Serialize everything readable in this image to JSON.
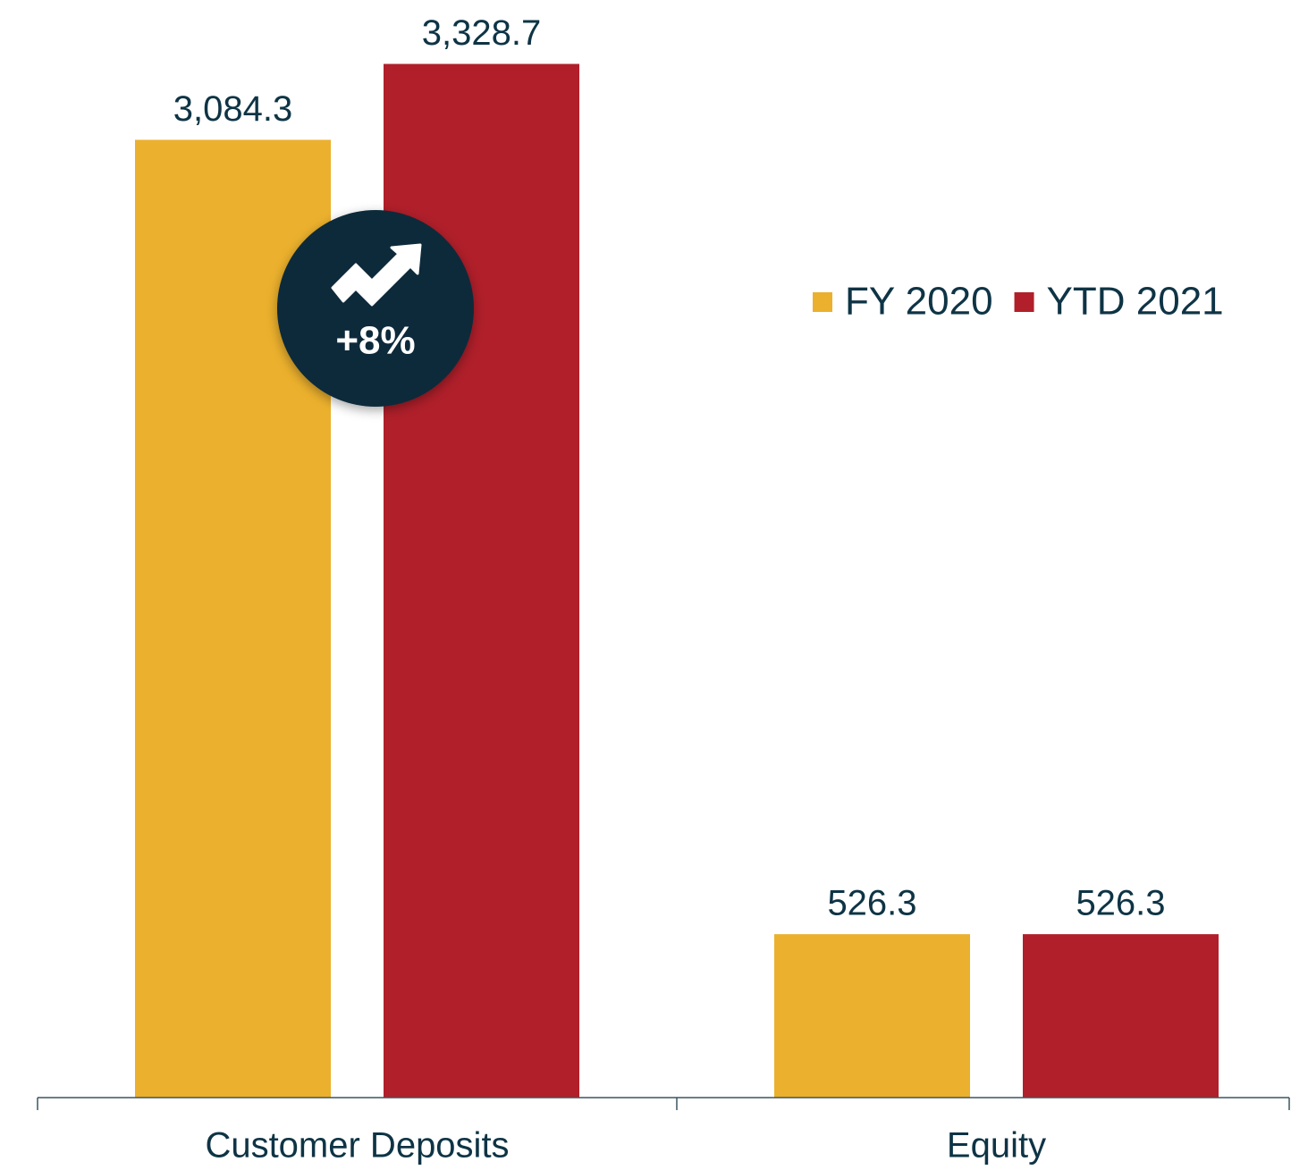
{
  "chart_data": {
    "type": "bar",
    "categories": [
      "Customer Deposits",
      "Equity"
    ],
    "series": [
      {
        "name": "FY 2020",
        "color": "#ebb02d",
        "values": [
          3084.3,
          526.3
        ],
        "value_labels": [
          "3,084.3",
          "526.3"
        ]
      },
      {
        "name": "YTD 2021",
        "color": "#b01f2a",
        "values": [
          3328.7,
          526.3
        ],
        "value_labels": [
          "3,328.7",
          "526.3"
        ]
      }
    ],
    "ylim": [
      0,
      3500
    ],
    "legend": "right",
    "annotation": "+8%"
  }
}
